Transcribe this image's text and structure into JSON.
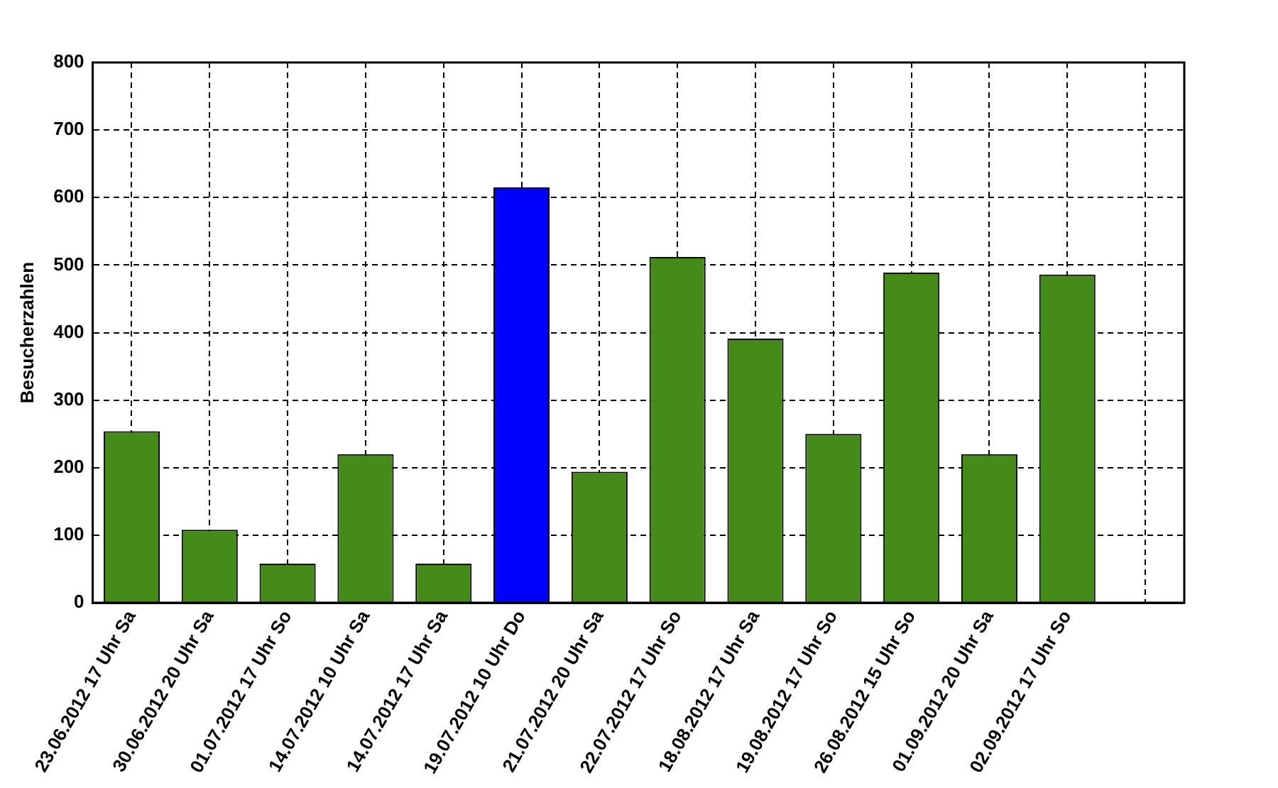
{
  "chart_data": {
    "type": "bar",
    "ylabel": "Besucherzahlen",
    "categories": [
      "23.06.2012 17 Uhr Sa",
      "30.06.2012 20 Uhr Sa",
      "01.07.2012 17 Uhr So",
      "14.07.2012 10 Uhr Sa",
      "14.07.2012 17 Uhr Sa",
      "19.07.2012 10 Uhr Do",
      "21.07.2012 20 Uhr Sa",
      "22.07.2012 17 Uhr So",
      "18.08.2012 17 Uhr Sa",
      "19.08.2012 17 Uhr So",
      "26.08.2012 15 Uhr So",
      "01.09.2012 20 Uhr Sa",
      "02.09.2012 17 Uhr So",
      null
    ],
    "values": [
      254,
      108,
      58,
      220,
      58,
      615,
      194,
      512,
      391,
      250,
      489,
      220,
      486,
      null
    ],
    "colors": [
      "#458b1a",
      "#458b1a",
      "#458b1a",
      "#458b1a",
      "#458b1a",
      "#0000ff",
      "#458b1a",
      "#458b1a",
      "#458b1a",
      "#458b1a",
      "#458b1a",
      "#458b1a",
      "#458b1a",
      null
    ],
    "ylim": [
      0,
      800
    ],
    "yticks": [
      0,
      100,
      200,
      300,
      400,
      500,
      600,
      700,
      800
    ],
    "grid": true,
    "legend": false
  }
}
